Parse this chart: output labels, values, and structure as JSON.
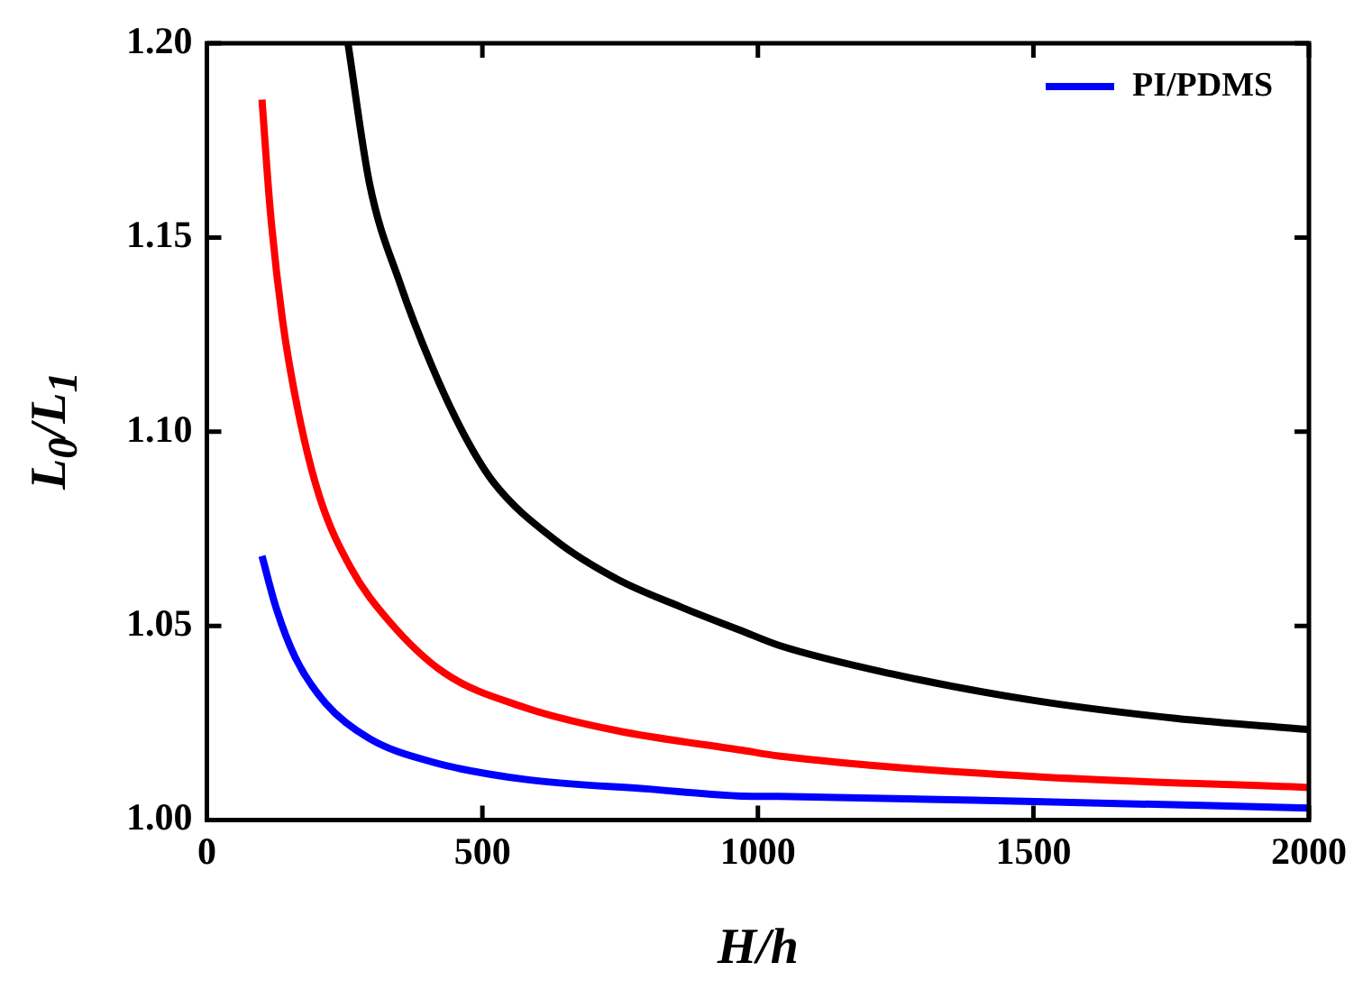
{
  "chart_data": {
    "type": "line",
    "xlabel": "H/h",
    "ylabel": "L$_{0}$/L$_{1}$",
    "xlim": [
      0,
      2000
    ],
    "xticks": [
      0,
      500,
      1000,
      1500,
      2000
    ],
    "ylim": [
      1.0,
      1.2
    ],
    "yticks": [
      {
        "value": 1.0,
        "label": "1.00"
      },
      {
        "value": 1.05,
        "label": "1.05"
      },
      {
        "value": 1.1,
        "label": "1.10"
      },
      {
        "value": 1.15,
        "label": "1.15"
      },
      {
        "value": 1.2,
        "label": "1.20"
      }
    ],
    "legend": "top right",
    "grid": false,
    "marker": "none",
    "line_style": "solid",
    "series": [
      {
        "color": "#000000",
        "x": [
          256,
          295,
          351,
          408,
          464,
          520,
          633,
          745,
          858,
          971,
          1038,
          1241,
          1501,
          1758,
          2000
        ],
        "values": [
          1.2,
          1.164,
          1.138,
          1.117,
          1.1,
          1.087,
          1.072,
          1.062,
          1.055,
          1.0487,
          1.045,
          1.0377,
          1.0308,
          1.0262,
          1.0233
        ]
      },
      {
        "color": "#ff0000",
        "x": [
          100,
          115,
          137,
          166,
          205,
          261,
          329,
          430,
          577,
          745,
          971,
          1038,
          1501,
          2000
        ],
        "values": [
          1.1855,
          1.157,
          1.129,
          1.105,
          1.083,
          1.065,
          1.0515,
          1.038,
          1.029,
          1.023,
          1.018,
          1.0165,
          1.0112,
          1.0084
        ]
      },
      {
        "name": "PI/PDMS",
        "color": "#0000ff",
        "x": [
          100,
          126,
          160,
          216,
          295,
          408,
          577,
          802,
          971,
          1038,
          1501,
          2000
        ],
        "values": [
          1.068,
          1.0545,
          1.042,
          1.03,
          1.021,
          1.015,
          1.0105,
          1.008,
          1.0062,
          1.0061,
          1.0048,
          1.0031
        ]
      }
    ]
  }
}
